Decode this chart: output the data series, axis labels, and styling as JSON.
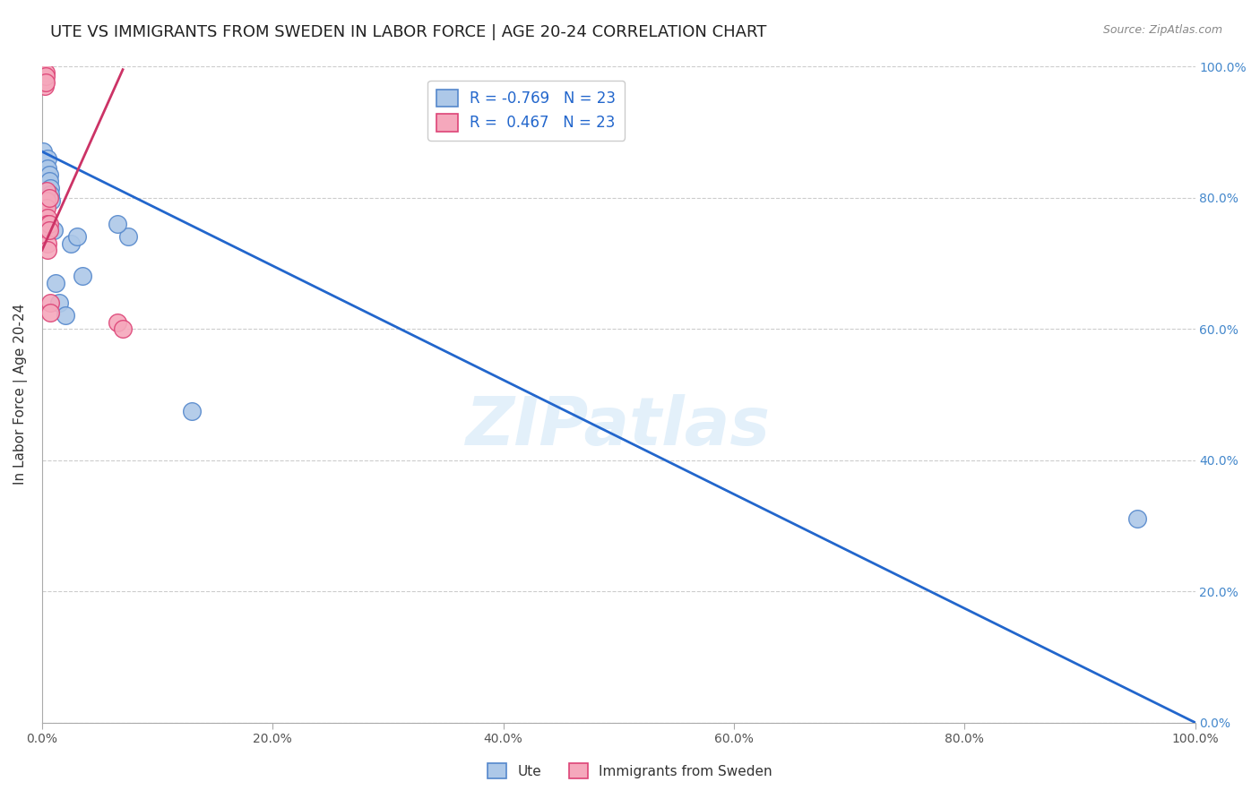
{
  "title": "UTE VS IMMIGRANTS FROM SWEDEN IN LABOR FORCE | AGE 20-24 CORRELATION CHART",
  "source": "Source: ZipAtlas.com",
  "ylabel": "In Labor Force | Age 20-24",
  "watermark": "ZIPatlas",
  "ute_R": "-0.769",
  "ute_N": "23",
  "imm_R": "0.467",
  "imm_N": "23",
  "ute_color": "#adc8e8",
  "imm_color": "#f5a8bc",
  "ute_edge_color": "#5588cc",
  "imm_edge_color": "#dd4477",
  "ute_line_color": "#2266cc",
  "imm_line_color": "#cc3366",
  "ute_scatter_x": [
    0.001,
    0.002,
    0.003,
    0.003,
    0.004,
    0.005,
    0.005,
    0.006,
    0.006,
    0.007,
    0.007,
    0.008,
    0.01,
    0.012,
    0.015,
    0.02,
    0.025,
    0.03,
    0.035,
    0.075,
    0.065,
    0.13,
    0.95
  ],
  "ute_scatter_y": [
    0.87,
    0.855,
    0.84,
    0.83,
    0.82,
    0.86,
    0.845,
    0.835,
    0.825,
    0.815,
    0.805,
    0.795,
    0.75,
    0.67,
    0.64,
    0.62,
    0.73,
    0.74,
    0.68,
    0.74,
    0.76,
    0.475,
    0.31
  ],
  "imm_scatter_x": [
    0.001,
    0.001,
    0.002,
    0.002,
    0.002,
    0.003,
    0.003,
    0.003,
    0.004,
    0.004,
    0.004,
    0.005,
    0.005,
    0.005,
    0.005,
    0.005,
    0.006,
    0.006,
    0.006,
    0.007,
    0.007,
    0.065,
    0.07
  ],
  "imm_scatter_y": [
    0.99,
    0.985,
    0.98,
    0.975,
    0.97,
    0.99,
    0.985,
    0.975,
    0.81,
    0.795,
    0.785,
    0.77,
    0.76,
    0.75,
    0.73,
    0.72,
    0.8,
    0.76,
    0.75,
    0.64,
    0.625,
    0.61,
    0.6
  ],
  "ute_line_x0": 0.0,
  "ute_line_x1": 1.0,
  "ute_line_y0": 0.87,
  "ute_line_y1": 0.0,
  "imm_line_x0": 0.0,
  "imm_line_x1": 0.07,
  "imm_line_y0": 0.72,
  "imm_line_y1": 0.995,
  "xlim_min": 0.0,
  "xlim_max": 1.0,
  "ylim_min": 0.0,
  "ylim_max": 1.0,
  "x_ticks": [
    0.0,
    0.2,
    0.4,
    0.6,
    0.8,
    1.0
  ],
  "x_tick_labels": [
    "0.0%",
    "20.0%",
    "40.0%",
    "60.0%",
    "80.0%",
    "100.0%"
  ],
  "y_ticks": [
    0.0,
    0.2,
    0.4,
    0.6,
    0.8,
    1.0
  ],
  "right_tick_labels": [
    "0.0%",
    "20.0%",
    "40.0%",
    "60.0%",
    "80.0%",
    "100.0%"
  ],
  "grid_color": "#cccccc",
  "background_color": "#ffffff",
  "title_fontsize": 13,
  "label_fontsize": 11,
  "tick_fontsize": 10,
  "legend_ute_label": "Ute",
  "legend_imm_label": "Immigrants from Sweden"
}
